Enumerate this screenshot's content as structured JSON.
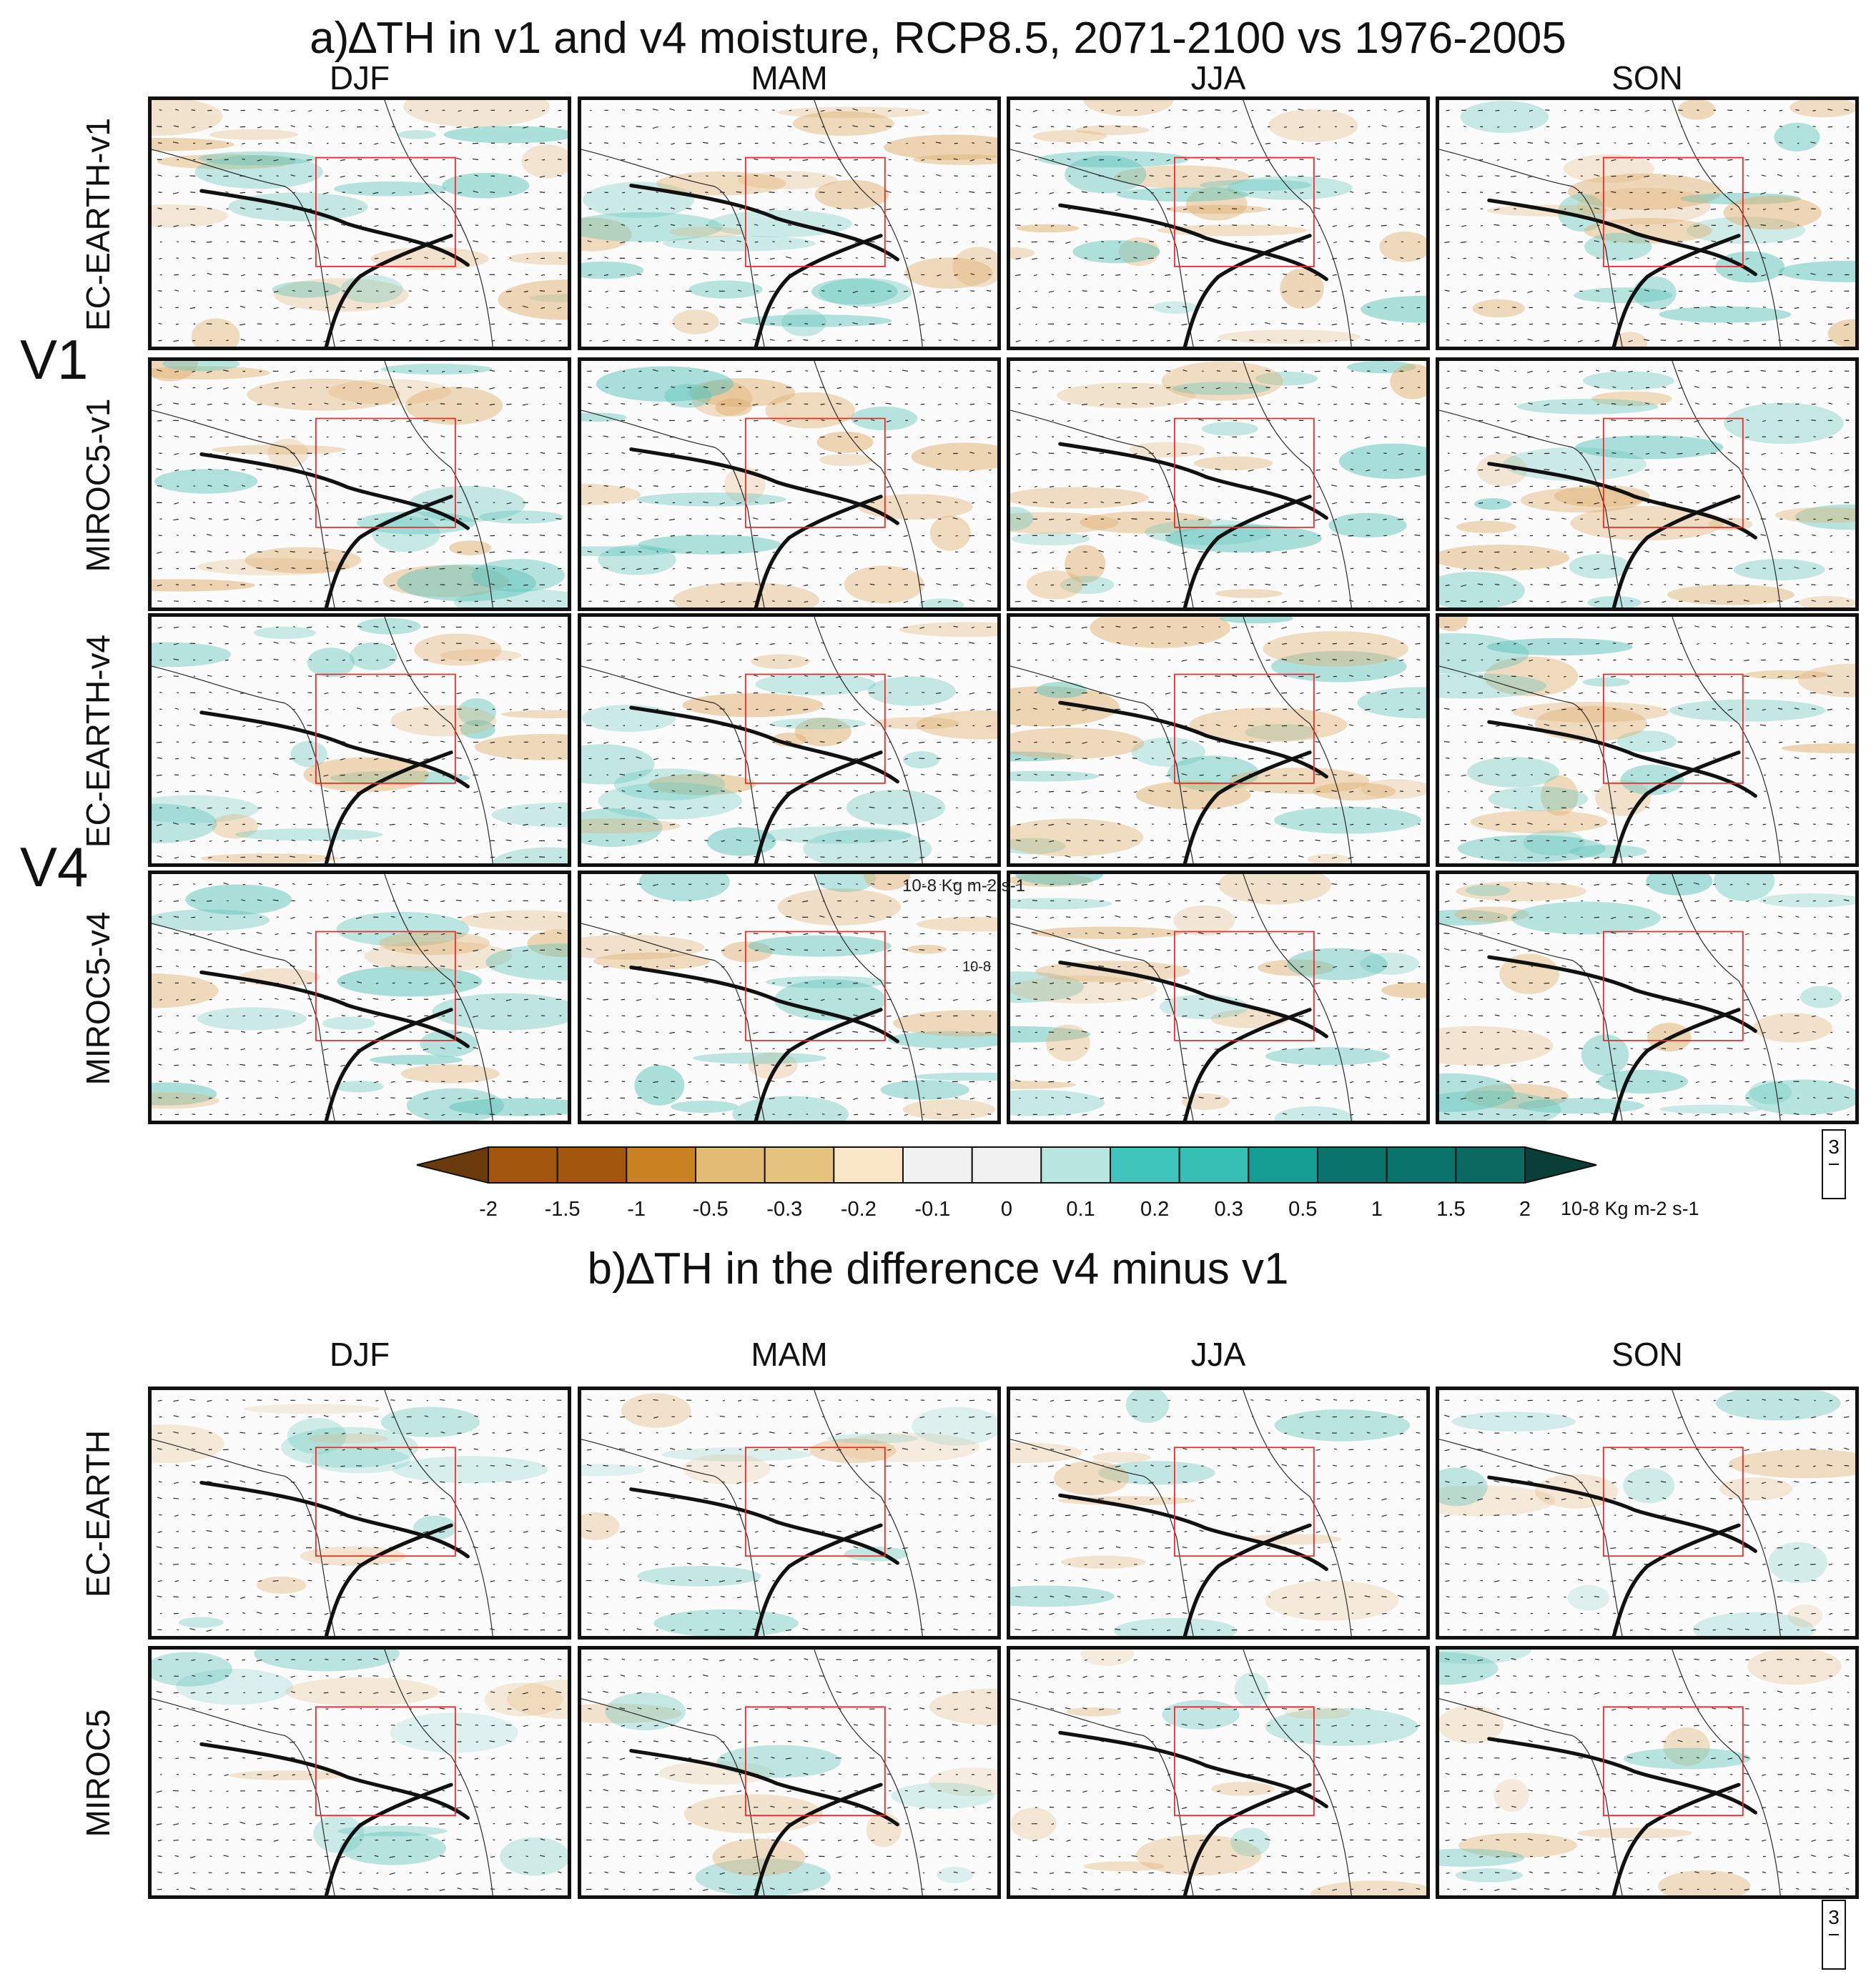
{
  "part_a": {
    "title": "a)∆TH in v1 and v4 moisture, RCP8.5, 2071-2100 vs 1976-2005",
    "seasons": [
      "DJF",
      "MAM",
      "JJA",
      "SON"
    ],
    "group_labels": [
      "V1",
      "V4"
    ],
    "rows": [
      "EC-EARTH-v1",
      "MIROC5-v1",
      "EC-EARTH-v4",
      "MIROC5-v4"
    ],
    "vector_label": "10-8 Kg m-2 s-1",
    "vector_label_short": "10-8",
    "reference_vector": "3"
  },
  "colorbar": {
    "ticks": [
      "-2",
      "-1.5",
      "-1",
      "-0.5",
      "-0.3",
      "-0.2",
      "-0.1",
      "0",
      "0.1",
      "0.2",
      "0.3",
      "0.5",
      "1",
      "1.5",
      "2"
    ],
    "colors": [
      "#6b3a0c",
      "#a3560e",
      "#a3560e",
      "#c98322",
      "#e2bb75",
      "#e6c27f",
      "#f9e6c6",
      "#f1f1f1",
      "#f1f1f1",
      "#b6e6df",
      "#3fc5bb",
      "#35bfb5",
      "#139d93",
      "#0a746c",
      "#0a746c",
      "#0a6a62",
      "#093f38"
    ],
    "unit": "10-8 Kg m-2 s-1"
  },
  "part_b": {
    "title": "b)∆TH in the difference v4 minus v1",
    "seasons": [
      "DJF",
      "MAM",
      "JJA",
      "SON"
    ],
    "rows": [
      "EC-EARTH",
      "MIROC5"
    ],
    "reference_vector": "3"
  },
  "map_style": {
    "region_box_color": "#ff2020",
    "divide_line_color": "#111111",
    "dry_shade": "#e0b070",
    "wet_shade": "#5fc4bb",
    "vector_color": "#222222"
  }
}
